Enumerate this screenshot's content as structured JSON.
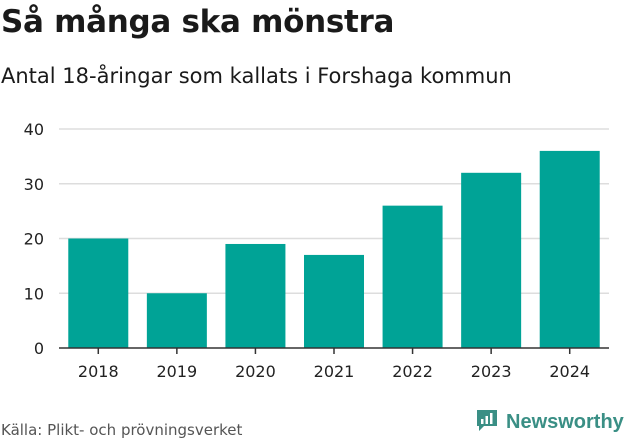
{
  "header": {
    "title": "Så många ska mönstra",
    "subtitle": "Antal 18-åringar som kallats i Forshaga kommun"
  },
  "footer": {
    "source": "Källa: Plikt- och prövningsverket",
    "brand": "Newsworthy"
  },
  "colors": {
    "bar": "#00a396",
    "grid": "#dddddd",
    "axis": "#333333",
    "brand": "#3a8f85"
  },
  "chart_data": {
    "type": "bar",
    "title": "Så många ska mönstra",
    "subtitle": "Antal 18-åringar som kallats i Forshaga kommun",
    "categories": [
      "2018",
      "2019",
      "2020",
      "2021",
      "2022",
      "2023",
      "2024"
    ],
    "values": [
      20,
      10,
      19,
      17,
      26,
      32,
      36
    ],
    "yticks": [
      0,
      10,
      20,
      30,
      40
    ],
    "ylim": [
      0,
      40
    ],
    "xlabel": "",
    "ylabel": "",
    "grid": true,
    "legend": "none"
  }
}
